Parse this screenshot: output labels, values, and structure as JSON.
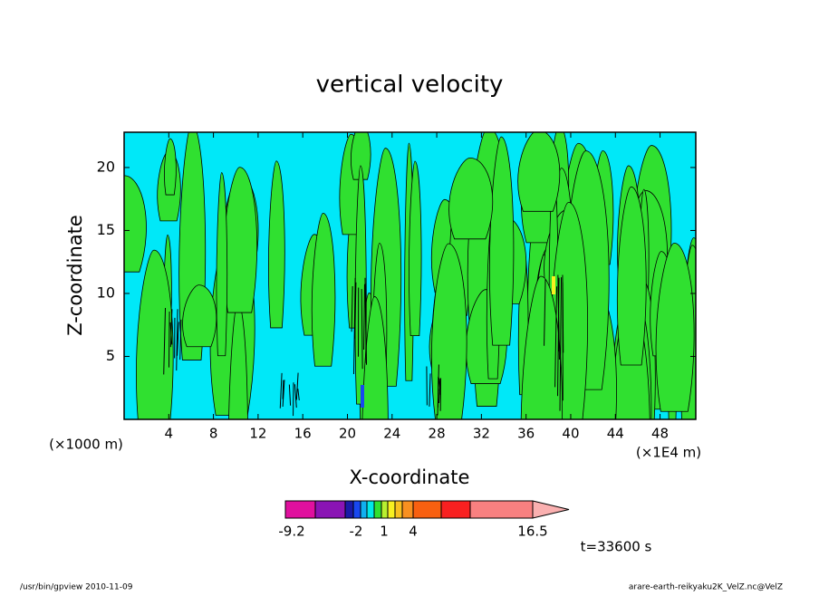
{
  "chart_data": {
    "type": "contour",
    "title": "vertical velocity",
    "x_label": "X-coordinate",
    "y_label": "Z-coordinate",
    "x_unit": "(×1E4 m)",
    "y_unit": "(×1000 m)",
    "xlim": [
      0,
      51.2
    ],
    "xticks": [
      4,
      8,
      12,
      16,
      20,
      24,
      28,
      32,
      36,
      40,
      44,
      48
    ],
    "ylim": [
      0,
      22.8
    ],
    "yticks": [
      5,
      10,
      15,
      20
    ],
    "colorbar": {
      "colors": [
        "#e0109e",
        "#8a14b4",
        "#1a1aa8",
        "#1848f0",
        "#10b0f0",
        "#00e8e8",
        "#30e030",
        "#b8f030",
        "#f8f020",
        "#f8c020",
        "#f89020",
        "#f86010",
        "#f82020",
        "#f88080",
        "#fab0b0"
      ],
      "ticks": [
        -9.2,
        -2,
        1,
        4,
        16.5
      ]
    },
    "time_label": "t=33600 s",
    "footer_left": "/usr/bin/gpview   2010-11-09",
    "footer_right": "arare-earth-reikyaku2K_VelZ.nc@VelZ"
  }
}
